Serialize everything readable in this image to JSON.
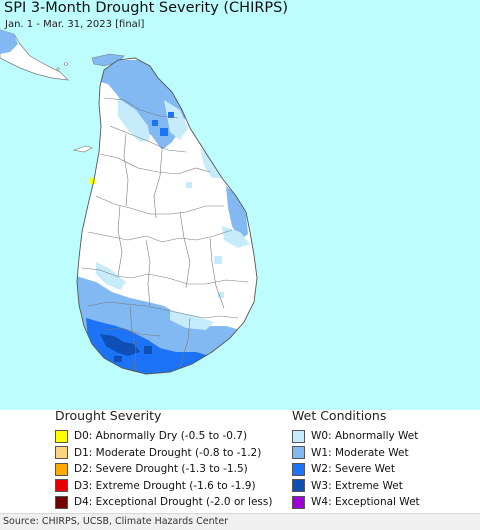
{
  "title": "SPI 3-Month Drought Severity (CHIRPS)",
  "subtitle": "Jan. 1 - Mar. 31, 2023 [final]",
  "source": "Source: CHIRPS, UCSB, Climate Hazards Center",
  "colors": {
    "ocean": "#bdfdfd",
    "land": "#ffffff",
    "boundary": "#7a7a7a",
    "W0": "#c6ecfc",
    "W1": "#82b9f2",
    "W2": "#1c73f5",
    "W3": "#0e4fb6",
    "W4": "#a000d6",
    "D0": "#ffff00"
  },
  "legend": {
    "drought": {
      "heading": "Drought Severity",
      "items": [
        {
          "code": "D0",
          "label": "D0: Abnormally Dry (-0.5 to -0.7)",
          "color": "#ffff00"
        },
        {
          "code": "D1",
          "label": "D1: Moderate Drought (-0.8 to -1.2)",
          "color": "#fcd37f"
        },
        {
          "code": "D2",
          "label": "D2: Severe Drought (-1.3 to -1.5)",
          "color": "#ffaa00"
        },
        {
          "code": "D3",
          "label": "D3: Extreme Drought (-1.6 to -1.9)",
          "color": "#e60000"
        },
        {
          "code": "D4",
          "label": "D4: Exceptional Drought (-2.0 or less)",
          "color": "#730000"
        }
      ]
    },
    "wet": {
      "heading": "Wet Conditions",
      "items": [
        {
          "code": "W0",
          "label": "W0: Abnormally Wet",
          "color": "#c6ecfc"
        },
        {
          "code": "W1",
          "label": "W1: Moderate Wet",
          "color": "#82b9f2"
        },
        {
          "code": "W2",
          "label": "W2: Severe Wet",
          "color": "#1c73f5"
        },
        {
          "code": "W3",
          "label": "W3: Extreme Wet",
          "color": "#0e4fb6"
        },
        {
          "code": "W4",
          "label": "W4: Exceptional Wet",
          "color": "#a000d6"
        }
      ]
    }
  }
}
